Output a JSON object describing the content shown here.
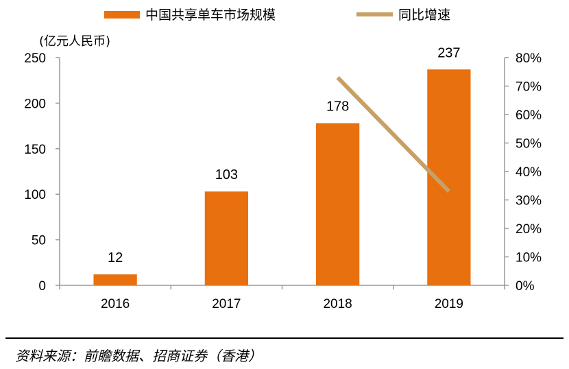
{
  "chart_data": {
    "type": "bar",
    "categories": [
      "2016",
      "2017",
      "2018",
      "2019"
    ],
    "series": [
      {
        "name": "中国共享单车市场规模",
        "type": "bar",
        "axis": "left",
        "values": [
          12,
          103,
          178,
          237
        ],
        "color": "#E8700E"
      },
      {
        "name": "同比增速",
        "type": "line",
        "axis": "right",
        "x": [
          "2018",
          "2019"
        ],
        "values": [
          0.73,
          0.33
        ],
        "color": "#C8A064"
      }
    ],
    "data_labels": [
      "12",
      "103",
      "178",
      "237"
    ],
    "ylabel": "(亿元人民币)",
    "ylim": [
      0,
      250
    ],
    "y_ticks": [
      "0",
      "50",
      "100",
      "150",
      "200",
      "250"
    ],
    "y2lim": [
      0,
      0.8
    ],
    "y2_ticks": [
      "0%",
      "10%",
      "20%",
      "30%",
      "40%",
      "50%",
      "60%",
      "70%",
      "80%"
    ],
    "legend_placement": "top",
    "grid": false
  },
  "source": "资料来源：前瞻数据、招商证券（香港）"
}
